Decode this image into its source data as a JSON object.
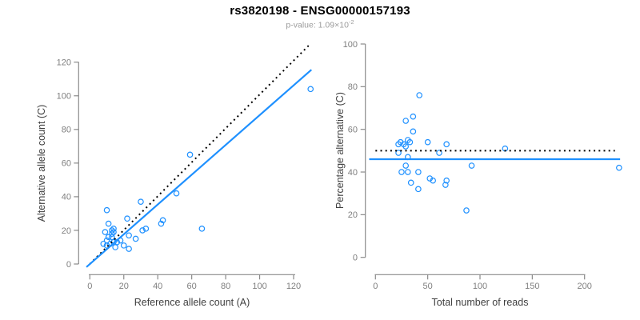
{
  "header": {
    "title": "rs3820198 - ENSG00000157193",
    "p_value_label": "p-value: ",
    "p_value_base": "1.09×10",
    "p_value_exponent": "-2"
  },
  "colors": {
    "accent_blue": "#1E90FF",
    "reference_black": "#000000",
    "axis_line": "#8a8a8a",
    "tick_label": "#7f7f7f",
    "axis_title": "#404040",
    "subtitle_gray": "#9b9b9b"
  },
  "chart_data": [
    {
      "id": "allele-count-scatter",
      "type": "scatter",
      "title": "",
      "xlabel": "Reference allele count (A)",
      "ylabel": "Alternative allele count (C)",
      "xticks": [
        0,
        20,
        40,
        60,
        80,
        100,
        120
      ],
      "yticks": [
        0,
        20,
        40,
        60,
        80,
        100,
        120
      ],
      "xlim": [
        0,
        135
      ],
      "ylim": [
        0,
        135
      ],
      "grid": false,
      "legend": "none",
      "point_color": "#1E90FF",
      "points": [
        [
          10,
          32
        ],
        [
          30,
          37
        ],
        [
          22,
          27
        ],
        [
          11,
          24
        ],
        [
          9,
          19
        ],
        [
          13,
          20
        ],
        [
          14,
          21
        ],
        [
          13,
          18
        ],
        [
          14,
          19
        ],
        [
          11,
          16
        ],
        [
          13,
          16
        ],
        [
          10,
          14
        ],
        [
          8,
          12
        ],
        [
          10,
          11
        ],
        [
          12,
          12
        ],
        [
          14,
          13
        ],
        [
          16,
          13
        ],
        [
          18,
          14
        ],
        [
          15,
          10
        ],
        [
          20,
          11
        ],
        [
          23,
          17
        ],
        [
          27,
          15
        ],
        [
          31,
          20
        ],
        [
          33,
          21
        ],
        [
          23,
          9
        ],
        [
          42,
          24
        ],
        [
          43,
          26
        ],
        [
          51,
          42
        ],
        [
          59,
          65
        ],
        [
          66,
          21
        ],
        [
          130,
          104
        ]
      ],
      "lines": [
        {
          "name": "identity-line",
          "style": "dotted",
          "color": "#000000",
          "width": 2,
          "x1": 0,
          "y1": 0,
          "x2": 130,
          "y2": 131
        },
        {
          "name": "fit-line",
          "style": "solid",
          "color": "#1E90FF",
          "width": 2.2,
          "x1": -2,
          "y1": -1.8,
          "x2": 130.5,
          "y2": 115.5
        }
      ]
    },
    {
      "id": "percentage-vs-reads-scatter",
      "type": "scatter",
      "title": "",
      "xlabel": "Total number of reads",
      "ylabel": "Percentage alternative (C)",
      "xticks": [
        0,
        50,
        100,
        150,
        200
      ],
      "yticks": [
        0,
        20,
        40,
        60,
        80,
        100
      ],
      "xlim": [
        0,
        240
      ],
      "ylim": [
        0,
        100
      ],
      "grid": false,
      "legend": "none",
      "point_color": "#1E90FF",
      "points": [
        [
          42,
          76
        ],
        [
          29,
          64
        ],
        [
          36,
          66
        ],
        [
          36,
          59
        ],
        [
          22,
          53
        ],
        [
          24,
          54
        ],
        [
          27,
          53
        ],
        [
          29,
          52
        ],
        [
          31,
          55
        ],
        [
          33,
          54
        ],
        [
          50,
          54
        ],
        [
          68,
          53
        ],
        [
          22,
          49
        ],
        [
          61,
          49
        ],
        [
          31,
          47
        ],
        [
          29,
          43
        ],
        [
          25,
          40
        ],
        [
          31,
          40
        ],
        [
          41,
          40
        ],
        [
          34,
          35
        ],
        [
          52,
          37
        ],
        [
          55,
          36
        ],
        [
          67,
          34
        ],
        [
          68,
          36
        ],
        [
          41,
          32
        ],
        [
          92,
          43
        ],
        [
          124,
          51
        ],
        [
          233,
          42
        ],
        [
          87,
          22
        ]
      ],
      "lines": [
        {
          "name": "reference-50pct-line",
          "style": "dotted",
          "color": "#000000",
          "width": 2,
          "x1": 0,
          "y1": 50,
          "x2": 229,
          "y2": 50
        },
        {
          "name": "mean-percentage-line",
          "style": "solid",
          "color": "#1E90FF",
          "width": 2.2,
          "x1": -6,
          "y1": 46,
          "x2": 234,
          "y2": 46
        }
      ]
    }
  ]
}
